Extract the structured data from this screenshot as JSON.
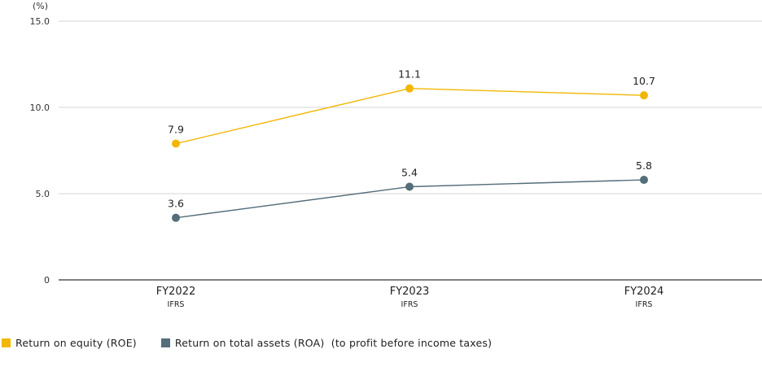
{
  "chart_data": {
    "type": "line",
    "unit_label": "(%)",
    "ylim": [
      0,
      15
    ],
    "yticks": [
      {
        "value": 0,
        "label": "0"
      },
      {
        "value": 5,
        "label": "5.0"
      },
      {
        "value": 10,
        "label": "10.0"
      },
      {
        "value": 15,
        "label": "15.0"
      }
    ],
    "categories": [
      {
        "label": "FY2022",
        "sub": "IFRS"
      },
      {
        "label": "FY2023",
        "sub": "IFRS"
      },
      {
        "label": "FY2024",
        "sub": "IFRS"
      }
    ],
    "series": [
      {
        "name": "Return on equity (ROE)",
        "color": "#F2B705",
        "values": [
          7.9,
          11.1,
          10.7
        ],
        "labels": [
          "7.9",
          "11.1",
          "10.7"
        ]
      },
      {
        "name": "Return on total assets (ROA)  (to profit before income taxes)",
        "color": "#546E7A",
        "values": [
          3.6,
          5.4,
          5.8
        ],
        "labels": [
          "3.6",
          "5.4",
          "5.8"
        ]
      }
    ],
    "grid": true,
    "legend_position": "bottom-left"
  }
}
